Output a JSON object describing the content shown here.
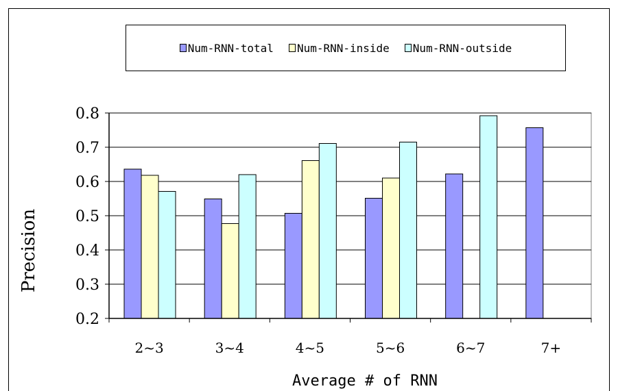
{
  "chart_data": {
    "type": "bar",
    "categories": [
      "2~3",
      "3~4",
      "4~5",
      "5~6",
      "6~7",
      "7+"
    ],
    "series": [
      {
        "name": "Num-RNN-total",
        "color": "#9999ff",
        "values": [
          0.636,
          0.549,
          0.507,
          0.551,
          0.622,
          0.757
        ]
      },
      {
        "name": "Num-RNN-inside",
        "color": "#ffffcc",
        "values": [
          0.618,
          0.477,
          0.661,
          0.61,
          null,
          null
        ]
      },
      {
        "name": "Num-RNN-outside",
        "color": "#ccffff",
        "values": [
          0.571,
          0.62,
          0.711,
          0.715,
          0.792,
          null
        ]
      }
    ],
    "y_ticks": [
      "0.2",
      "0.3",
      "0.4",
      "0.5",
      "0.6",
      "0.7",
      "0.8"
    ],
    "ylim": [
      0.2,
      0.8
    ],
    "xlabel": "Average # of RNN",
    "ylabel": "Precision",
    "grid": true,
    "legend_position": "top"
  }
}
